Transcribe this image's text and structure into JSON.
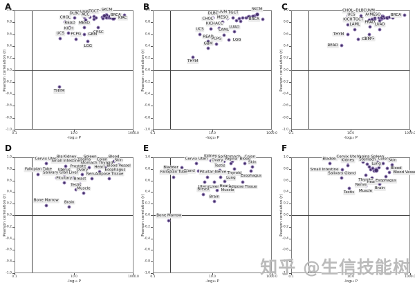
{
  "watermark": "知乎 @生信技能树",
  "axes": {
    "y_label": "Pearson correlation (r)",
    "x_label": "-log₁₀ P",
    "y_ticks": [
      "1.0",
      "0.8",
      "0.6",
      "0.4",
      "0.2",
      "0.0",
      "-0.2",
      "-0.4",
      "-0.6",
      "-0.8",
      "-1.0"
    ],
    "x_ticks": [
      {
        "label": "0.1",
        "pos": 0
      },
      {
        "label": "10.0",
        "pos": 0.5
      },
      {
        "label": "1000.0",
        "pos": 1
      }
    ],
    "xlim": [
      0.1,
      1000
    ],
    "ylim": [
      -1,
      1
    ],
    "x_scale": "log",
    "vline_frac": 0.14,
    "hline_r": 0,
    "grid": false
  },
  "colors": {
    "point_fill": "#44306A",
    "point_edge": "#9B86BC",
    "label_bg": "#EBEBEB",
    "frame": "#7D7D7D",
    "ref_line": "#3F3F3F",
    "watermark_gray": "#969696"
  },
  "chart_data": [
    {
      "panel": "A",
      "type": "scatter",
      "xlabel": "-log₁₀ P",
      "ylabel": "Pearson correlation (r)",
      "xlim": [
        0.1,
        1000
      ],
      "ylim": [
        -1,
        1
      ],
      "points": [
        {
          "label": "UVM",
          "x": 21,
          "r": 0.9
        },
        {
          "label": "TGCT",
          "x": 44,
          "r": 0.91
        },
        {
          "label": "SKCM",
          "x": 120,
          "r": 0.93,
          "s": 6
        },
        {
          "label": "BRCA",
          "x": 480,
          "r": 0.93,
          "lp": "l"
        },
        {
          "label": "DLBC",
          "x": 10,
          "r": 0.88
        },
        {
          "label": "ACC",
          "x": 23,
          "r": 0.85
        },
        {
          "label": "KIRC",
          "x": 200,
          "r": 0.88,
          "lp": "r",
          "s": 8
        },
        {
          "label": "CHOL",
          "x": 4.8,
          "r": 0.81
        },
        {
          "label": "READ",
          "x": 6.9,
          "r": 0.72
        },
        {
          "label": "MESO",
          "x": 21,
          "r": 0.72
        },
        {
          "label": "CESC",
          "x": 63,
          "r": 0.72,
          "lp": "b"
        },
        {
          "label": "KICH",
          "x": 6.3,
          "r": 0.63
        },
        {
          "label": "GBM",
          "x": 21,
          "r": 0.61,
          "lp": "r"
        },
        {
          "label": "UCS",
          "x": 3.3,
          "r": 0.54
        },
        {
          "label": "PCPG",
          "x": 11,
          "r": 0.53
        },
        {
          "label": "LGG",
          "x": 28,
          "r": 0.49,
          "lp": "b"
        },
        {
          "label": "THYM",
          "x": 3.0,
          "r": -0.27,
          "lp": "b"
        },
        {
          "label": "",
          "x": 33,
          "r": 0.9
        },
        {
          "label": "",
          "x": 52,
          "r": 0.88
        },
        {
          "label": "",
          "x": 83,
          "r": 0.9
        },
        {
          "label": "",
          "x": 100,
          "r": 0.92,
          "s": 6
        },
        {
          "label": "",
          "x": 150,
          "r": 0.9,
          "s": 7
        },
        {
          "label": "",
          "x": 178,
          "r": 0.92,
          "s": 6
        },
        {
          "label": "",
          "x": 44,
          "r": 0.86
        },
        {
          "label": "",
          "x": 132,
          "r": 0.89
        },
        {
          "label": "",
          "x": 90,
          "r": 0.87
        },
        {
          "label": "",
          "x": 115,
          "r": 0.88
        }
      ]
    },
    {
      "panel": "B",
      "type": "scatter",
      "xlabel": "-log₁₀ P",
      "ylabel": "Pearson correlation (r)",
      "xlim": [
        0.1,
        1000
      ],
      "ylim": [
        -1,
        1
      ],
      "points": [
        {
          "label": "UVM",
          "x": 21,
          "r": 0.9
        },
        {
          "label": "SKCM",
          "x": 300,
          "r": 0.94,
          "s": 6
        },
        {
          "label": "DLBC",
          "x": 10,
          "r": 0.88
        },
        {
          "label": "TGCT",
          "x": 48,
          "r": 0.89
        },
        {
          "label": "BRCA",
          "x": 480,
          "r": 0.86,
          "lp": "l"
        },
        {
          "label": "MESO",
          "x": 21,
          "r": 0.81
        },
        {
          "label": "CHOL",
          "x": 6.6,
          "r": 0.79
        },
        {
          "label": "KICH",
          "x": 8.3,
          "r": 0.7
        },
        {
          "label": "ACC",
          "x": 16,
          "r": 0.71
        },
        {
          "label": "LUAD",
          "x": 52,
          "r": 0.65
        },
        {
          "label": "UCS",
          "x": 3.6,
          "r": 0.61
        },
        {
          "label": "LAML",
          "x": 23,
          "r": 0.6
        },
        {
          "label": "READ",
          "x": 6.9,
          "r": 0.49
        },
        {
          "label": "LGG",
          "x": 35,
          "r": 0.52,
          "lp": "r"
        },
        {
          "label": "PCPG",
          "x": 13,
          "r": 0.45
        },
        {
          "label": "GBM",
          "x": 6.9,
          "r": 0.37
        },
        {
          "label": "THYM",
          "x": 2.1,
          "r": 0.23,
          "lp": "b"
        },
        {
          "label": "",
          "x": 76,
          "r": 0.87
        },
        {
          "label": "",
          "x": 100,
          "r": 0.88
        },
        {
          "label": "",
          "x": 132,
          "r": 0.89
        },
        {
          "label": "",
          "x": 158,
          "r": 0.9,
          "s": 7
        },
        {
          "label": "",
          "x": 190,
          "r": 0.9
        },
        {
          "label": "",
          "x": 63,
          "r": 0.84
        },
        {
          "label": "",
          "x": 83,
          "r": 0.83
        },
        {
          "label": "",
          "x": 30,
          "r": 0.87
        },
        {
          "label": "",
          "x": 250,
          "r": 0.92
        },
        {
          "label": "",
          "x": 220,
          "r": 0.91,
          "s": 6
        }
      ]
    },
    {
      "panel": "C",
      "type": "scatter",
      "xlabel": "-log₁₀ P",
      "ylabel": "Pearson correlation (r)",
      "xlim": [
        0.1,
        1000
      ],
      "ylim": [
        -1,
        1
      ],
      "points": [
        {
          "label": "CHOL",
          "x": 7.6,
          "r": 0.92
        },
        {
          "label": "DLBC",
          "x": 21,
          "r": 0.92
        },
        {
          "label": "UVM",
          "x": 44,
          "r": 0.92
        },
        {
          "label": "BRCA",
          "x": 630,
          "r": 0.93,
          "lp": "l"
        },
        {
          "label": "UCS",
          "x": 10,
          "r": 0.85
        },
        {
          "label": "ACC",
          "x": 40,
          "r": 0.85
        },
        {
          "label": "MESO",
          "x": 63,
          "r": 0.86
        },
        {
          "label": "KICH",
          "x": 7.6,
          "r": 0.77
        },
        {
          "label": "TGCT",
          "x": 17,
          "r": 0.77
        },
        {
          "label": "PRAD",
          "x": 42,
          "r": 0.73
        },
        {
          "label": "LAML",
          "x": 13,
          "r": 0.69
        },
        {
          "label": "LUAD",
          "x": 91,
          "r": 0.69
        },
        {
          "label": "THYM",
          "x": 7.6,
          "r": 0.61,
          "lp": "l"
        },
        {
          "label": "PCPG",
          "x": 40,
          "r": 0.61,
          "lp": "b"
        },
        {
          "label": "GBM",
          "x": 17,
          "r": 0.53,
          "lp": "r"
        },
        {
          "label": "READ",
          "x": 4.8,
          "r": 0.42,
          "lp": "l"
        },
        {
          "label": "",
          "x": 63,
          "r": 0.88
        },
        {
          "label": "",
          "x": 83,
          "r": 0.89
        },
        {
          "label": "",
          "x": 100,
          "r": 0.87,
          "s": 7
        },
        {
          "label": "",
          "x": 110,
          "r": 0.9,
          "s": 8
        },
        {
          "label": "",
          "x": 132,
          "r": 0.88
        },
        {
          "label": "",
          "x": 158,
          "r": 0.89,
          "s": 6
        },
        {
          "label": "",
          "x": 190,
          "r": 0.9
        },
        {
          "label": "",
          "x": 250,
          "r": 0.88
        },
        {
          "label": "",
          "x": 50,
          "r": 0.86
        },
        {
          "label": "",
          "x": 120,
          "r": 0.91
        },
        {
          "label": "",
          "x": 91,
          "r": 0.84
        }
      ]
    },
    {
      "panel": "D",
      "type": "scatter",
      "xlabel": "-log₁₀ P",
      "ylabel": "Pearson correlation (r)",
      "xlim": [
        0.1,
        1000
      ],
      "ylim": [
        -1,
        1
      ],
      "points": [
        {
          "label": "Bladder",
          "x": 4.4,
          "r": 0.94
        },
        {
          "label": "Kidney",
          "x": 6.9,
          "r": 0.94
        },
        {
          "label": "Spleen",
          "x": 33,
          "r": 0.93
        },
        {
          "label": "Blood",
          "x": 209,
          "r": 0.94
        },
        {
          "label": "Cervix Uteri",
          "x": 1.1,
          "r": 0.9
        },
        {
          "label": "Vagina",
          "x": 21,
          "r": 0.89
        },
        {
          "label": "Colon",
          "x": 83,
          "r": 0.89
        },
        {
          "label": "Skin",
          "x": 300,
          "r": 0.88
        },
        {
          "label": "Small Intestine",
          "x": 5,
          "r": 0.86
        },
        {
          "label": "Stomach",
          "x": 30,
          "r": 0.83
        },
        {
          "label": "Thyroid",
          "x": 110,
          "r": 0.83
        },
        {
          "label": "Blood Vessel",
          "x": 300,
          "r": 0.78
        },
        {
          "label": "Prostate",
          "x": 13,
          "r": 0.77
        },
        {
          "label": "Heart",
          "x": 69,
          "r": 0.76
        },
        {
          "label": "Fallopian Tube",
          "x": 0.6,
          "r": 0.72
        },
        {
          "label": "Uterus",
          "x": 4.4,
          "r": 0.71
        },
        {
          "label": "Ovary",
          "x": 18,
          "r": 0.71
        },
        {
          "label": "Esophagus",
          "x": 229,
          "r": 0.71
        },
        {
          "label": "Salivary Gland",
          "x": 2.5,
          "r": 0.66
        },
        {
          "label": "Liver",
          "x": 9.1,
          "r": 0.66
        },
        {
          "label": "Nerve",
          "x": 38,
          "r": 0.64
        },
        {
          "label": "Adipose Tissue",
          "x": 145,
          "r": 0.64
        },
        {
          "label": "Pituitary",
          "x": 4.4,
          "r": 0.57
        },
        {
          "label": "Breast",
          "x": 15,
          "r": 0.55
        },
        {
          "label": "Testis",
          "x": 11,
          "r": 0.45
        },
        {
          "label": "Muscle",
          "x": 20,
          "r": 0.39
        },
        {
          "label": "Bone Marrow",
          "x": 1.1,
          "r": 0.18
        },
        {
          "label": "Brain",
          "x": 6.6,
          "r": 0.15
        }
      ]
    },
    {
      "panel": "E",
      "type": "scatter",
      "xlabel": "-log₁₀ P",
      "ylabel": "Pearson correlation (r)",
      "xlim": [
        0.1,
        1000
      ],
      "ylim": [
        -1,
        1
      ],
      "points": [
        {
          "label": "Kidney",
          "x": 8.3,
          "r": 0.95
        },
        {
          "label": "Spleen",
          "x": 24,
          "r": 0.94
        },
        {
          "label": "Stomach",
          "x": 44,
          "r": 0.94
        },
        {
          "label": "Colon",
          "x": 174,
          "r": 0.94
        },
        {
          "label": "Cervix Uteri",
          "x": 2.75,
          "r": 0.9
        },
        {
          "label": "Vagina",
          "x": 40,
          "r": 0.9
        },
        {
          "label": "Blood",
          "x": 120,
          "r": 0.9
        },
        {
          "label": "Bladder",
          "x": 0.91,
          "r": 0.83,
          "lp": "l"
        },
        {
          "label": "Ovary",
          "x": 14,
          "r": 0.87
        },
        {
          "label": "Thyroid",
          "x": 52,
          "r": 0.81,
          "lp": "b"
        },
        {
          "label": "Skin",
          "x": 209,
          "r": 0.84
        },
        {
          "label": "Salivary Gland",
          "x": 3.3,
          "r": 0.77,
          "lp": "l"
        },
        {
          "label": "Testis",
          "x": 17,
          "r": 0.78
        },
        {
          "label": "Lung",
          "x": 40,
          "r": 0.73,
          "lp": "b"
        },
        {
          "label": "Esophagus",
          "x": 190,
          "r": 0.77,
          "lp": "b"
        },
        {
          "label": "Fallopian Tube",
          "x": 0.48,
          "r": 0.67
        },
        {
          "label": "Pituitary",
          "x": 6.6,
          "r": 0.67
        },
        {
          "label": "Nerve",
          "x": 18,
          "r": 0.67
        },
        {
          "label": "Uterus",
          "x": 5.2,
          "r": 0.58,
          "lp": "b"
        },
        {
          "label": "Liver",
          "x": 11,
          "r": 0.58,
          "lp": "b"
        },
        {
          "label": "Heart",
          "x": 25,
          "r": 0.59,
          "lp": "b"
        },
        {
          "label": "Adipose Tissue",
          "x": 100,
          "r": 0.58,
          "lp": "b"
        },
        {
          "label": "Muscle",
          "x": 13.8,
          "r": 0.44,
          "lp": "r"
        },
        {
          "label": "Breast",
          "x": 4.8,
          "r": 0.37
        },
        {
          "label": "Brain",
          "x": 11,
          "r": 0.25
        },
        {
          "label": "Bone Marrow",
          "x": 0.33,
          "r": -0.08
        }
      ]
    },
    {
      "panel": "F",
      "type": "scatter",
      "xlabel": "-log₁₀ P",
      "ylabel": "Pearson correlation (r)",
      "xlim": [
        0.1,
        1000
      ],
      "ylim": [
        -1,
        1
      ],
      "points": [
        {
          "label": "Bladder",
          "x": 1.9,
          "r": 0.9
        },
        {
          "label": "Cervix Uteri",
          "x": 7.6,
          "r": 0.93
        },
        {
          "label": "Vagina",
          "x": 25,
          "r": 0.93
        },
        {
          "label": "Spleen",
          "x": 76,
          "r": 0.94
        },
        {
          "label": "Kidney",
          "x": 7.6,
          "r": 0.87
        },
        {
          "label": "Stomach",
          "x": 35,
          "r": 0.89
        },
        {
          "label": "Colon",
          "x": 120,
          "r": 0.9
        },
        {
          "label": "Skin",
          "x": 240,
          "r": 0.88
        },
        {
          "label": "Small Intestine",
          "x": 5,
          "r": 0.8,
          "lp": "l"
        },
        {
          "label": "Lung",
          "x": 69,
          "r": 0.81
        },
        {
          "label": "Blood",
          "x": 158,
          "r": 0.82,
          "lp": "r"
        },
        {
          "label": "Thyroid",
          "x": 30,
          "r": 0.7,
          "lp": "b"
        },
        {
          "label": "Blood Vessel",
          "x": 191,
          "r": 0.75,
          "lp": "r"
        },
        {
          "label": "Heart",
          "x": 50,
          "r": 0.66,
          "lp": "b"
        },
        {
          "label": "Esophagus",
          "x": 145,
          "r": 0.68,
          "lp": "b"
        },
        {
          "label": "Salivary Gland",
          "x": 4.8,
          "r": 0.65
        },
        {
          "label": "Nerve",
          "x": 21,
          "r": 0.61,
          "lp": "b"
        },
        {
          "label": "Brain",
          "x": 91,
          "r": 0.55,
          "lp": "b"
        },
        {
          "label": "Testis",
          "x": 8.3,
          "r": 0.48,
          "lp": "b"
        },
        {
          "label": "Muscle",
          "x": 30,
          "r": 0.51,
          "lp": "b"
        },
        {
          "label": "",
          "x": 44,
          "r": 0.8
        },
        {
          "label": "",
          "x": 52,
          "r": 0.82
        },
        {
          "label": "",
          "x": 63,
          "r": 0.79,
          "s": 6
        },
        {
          "label": "",
          "x": 83,
          "r": 0.83
        },
        {
          "label": "",
          "x": 57,
          "r": 0.77
        },
        {
          "label": "",
          "x": 40,
          "r": 0.84
        },
        {
          "label": "",
          "x": 70,
          "r": 0.78,
          "s": 7
        }
      ]
    }
  ]
}
